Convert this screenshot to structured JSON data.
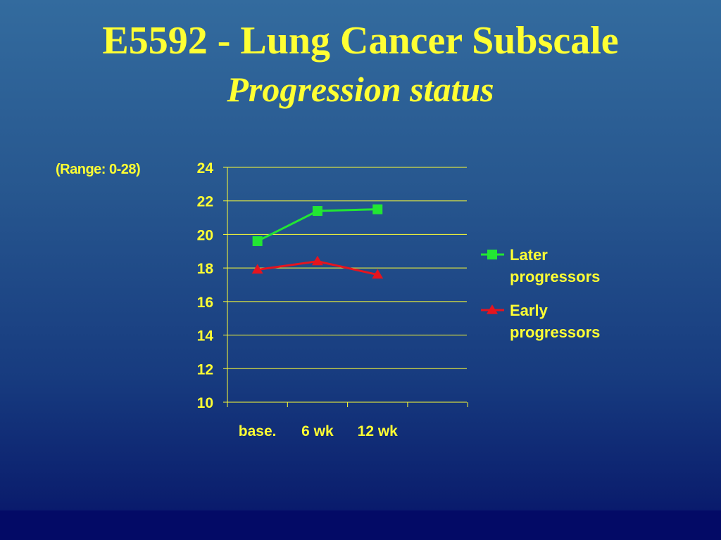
{
  "title": "E5592 - Lung Cancer Subscale",
  "subtitle": "Progression status",
  "range_note": "(Range: 0-28)",
  "colors": {
    "text": "#ffff33",
    "gridline": "#ffff33",
    "later_series": "#22e633",
    "early_series": "#e6141e"
  },
  "chart_data": {
    "type": "line",
    "title": "",
    "xlabel": "",
    "ylabel": "",
    "categories": [
      "base.",
      "6 wk",
      "12 wk"
    ],
    "ylim": [
      10,
      24
    ],
    "yticks": [
      10,
      12,
      14,
      16,
      18,
      20,
      22,
      24
    ],
    "grid": true,
    "legend_position": "right",
    "series": [
      {
        "name": "Later progressors",
        "marker": "square",
        "color": "#22e633",
        "values": [
          19.6,
          21.4,
          21.5
        ]
      },
      {
        "name": "Early progressors",
        "marker": "triangle",
        "color": "#e6141e",
        "values": [
          17.9,
          18.4,
          17.6
        ]
      }
    ],
    "legend": [
      {
        "lines": [
          "Later",
          "progressors"
        ]
      },
      {
        "lines": [
          "Early",
          "progressors"
        ]
      }
    ]
  }
}
